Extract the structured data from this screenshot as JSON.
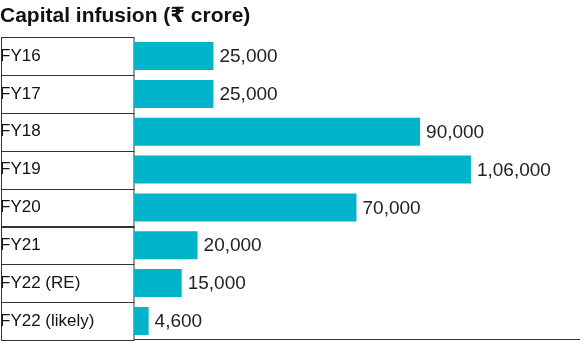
{
  "chart_data": {
    "type": "bar",
    "title": "Capital infusion (₹ crore)",
    "orientation": "horizontal",
    "categories": [
      "FY16",
      "FY17",
      "FY18",
      "FY19",
      "FY20",
      "FY21",
      "FY22 (RE)",
      "FY22 (likely)"
    ],
    "values": [
      25000,
      25000,
      90000,
      106000,
      70000,
      20000,
      15000,
      4600
    ],
    "value_labels": [
      "25,000",
      "25,000",
      "90,000",
      "1,06,000",
      "70,000",
      "20,000",
      "15,000",
      "4,600"
    ],
    "color": "#00b5c9",
    "xlim": [
      0,
      140000
    ],
    "data_labels": true,
    "tick_labels": "y",
    "grid": false
  }
}
